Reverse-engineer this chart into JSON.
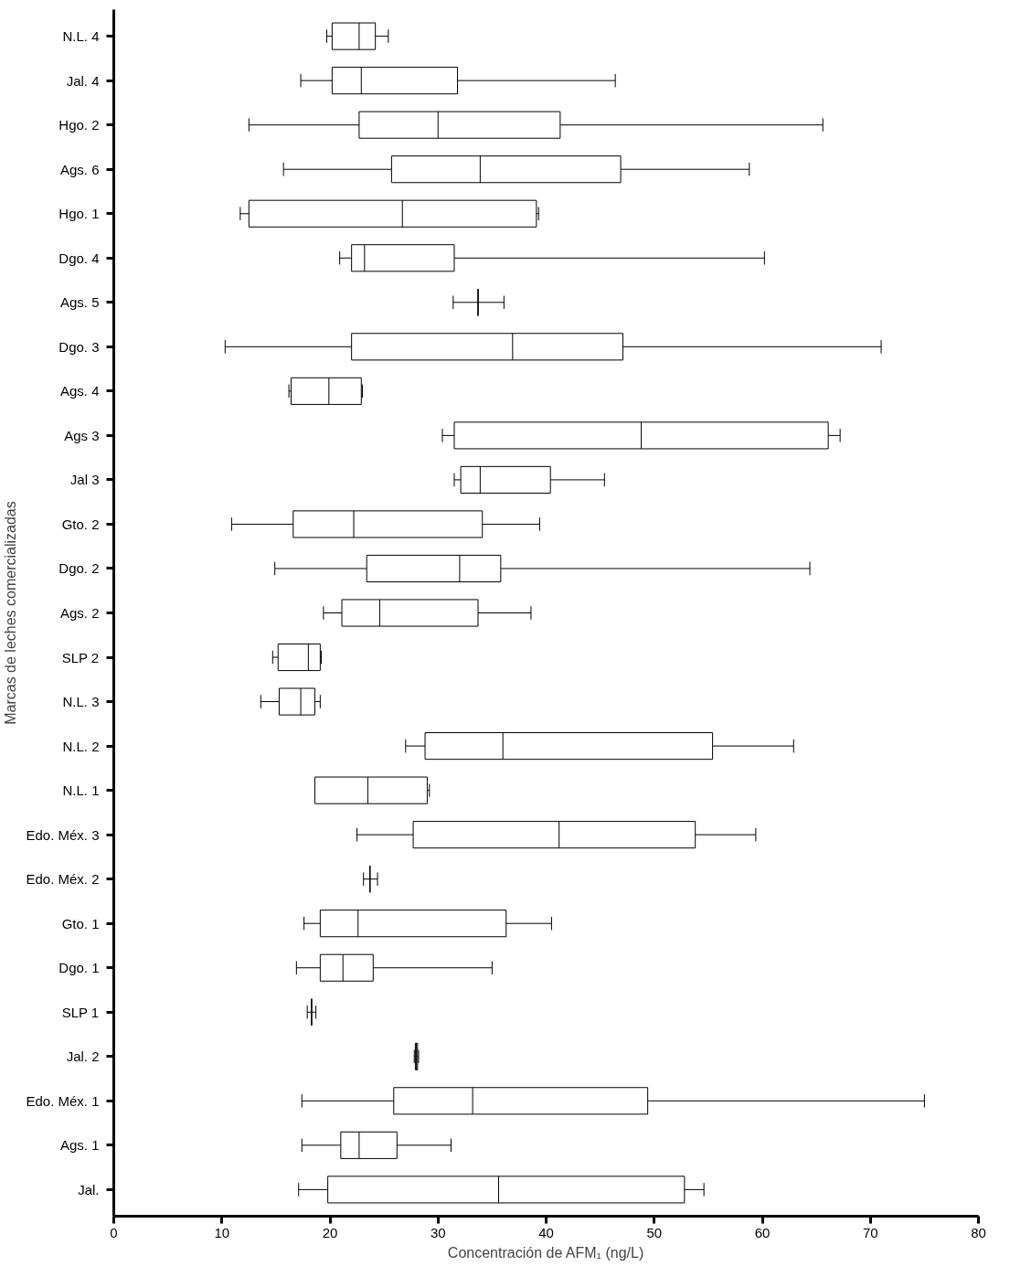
{
  "chart_data": {
    "type": "box",
    "orientation": "horizontal",
    "color": "#000000",
    "xlabel": "Concentración de AFM₁ (ng/L)",
    "ylabel": "Marcas de leches comercializadas",
    "categories": [
      "N.L. 4",
      "Jal. 4",
      "Hgo. 2",
      "Ags. 6",
      "Hgo. 1",
      "Dgo. 4",
      "Ags. 5",
      "Dgo. 3",
      "Ags. 4",
      "Ags 3",
      "Jal 3",
      "Gto. 2",
      "Dgo. 2",
      "Ags. 2",
      "SLP 2",
      "N.L. 3",
      "N.L. 2",
      "N.L. 1",
      "Edo. Méx. 3",
      "Edo. Méx. 2",
      "Gto. 1",
      "Dgo. 1",
      "SLP 1",
      "Jal. 2",
      "Edo. Méx. 1",
      "Ags. 1",
      "Jal."
    ],
    "boxes": [
      {
        "low": 19.7,
        "q1": 20.2,
        "median": 22.7,
        "q3": 24.2,
        "high": 25.4
      },
      {
        "low": 17.3,
        "q1": 20.2,
        "median": 22.9,
        "q3": 31.8,
        "high": 46.4
      },
      {
        "low": 12.5,
        "q1": 22.7,
        "median": 30.0,
        "q3": 41.3,
        "high": 65.6
      },
      {
        "low": 15.7,
        "q1": 25.7,
        "median": 33.9,
        "q3": 46.9,
        "high": 58.8
      },
      {
        "low": 11.7,
        "q1": 12.5,
        "median": 26.7,
        "q3": 39.1,
        "high": 39.3
      },
      {
        "low": 20.9,
        "q1": 22.0,
        "median": 23.2,
        "q3": 31.5,
        "high": 60.2
      },
      {
        "low": 31.4,
        "q1": 33.7,
        "median": 33.7,
        "q3": 33.7,
        "high": 36.1
      },
      {
        "low": 10.3,
        "q1": 22.0,
        "median": 36.9,
        "q3": 47.1,
        "high": 71.0
      },
      {
        "low": 16.2,
        "q1": 16.4,
        "median": 19.9,
        "q3": 22.9,
        "high": 23.0
      },
      {
        "low": 30.4,
        "q1": 31.5,
        "median": 48.8,
        "q3": 66.1,
        "high": 67.2
      },
      {
        "low": 31.5,
        "q1": 32.1,
        "median": 33.9,
        "q3": 40.4,
        "high": 45.4
      },
      {
        "low": 10.9,
        "q1": 16.6,
        "median": 22.2,
        "q3": 34.1,
        "high": 39.4
      },
      {
        "low": 14.9,
        "q1": 23.4,
        "median": 32.0,
        "q3": 35.8,
        "high": 64.4
      },
      {
        "low": 19.4,
        "q1": 21.1,
        "median": 24.6,
        "q3": 33.7,
        "high": 38.6
      },
      {
        "low": 14.7,
        "q1": 15.2,
        "median": 18.0,
        "q3": 19.1,
        "high": 19.2
      },
      {
        "low": 13.6,
        "q1": 15.3,
        "median": 17.3,
        "q3": 18.6,
        "high": 19.1
      },
      {
        "low": 27.0,
        "q1": 28.8,
        "median": 36.0,
        "q3": 55.4,
        "high": 62.9
      },
      {
        "low": 18.6,
        "q1": 18.6,
        "median": 23.5,
        "q3": 29.0,
        "high": 29.2
      },
      {
        "low": 22.5,
        "q1": 27.7,
        "median": 41.2,
        "q3": 53.8,
        "high": 59.4
      },
      {
        "low": 23.1,
        "q1": 23.7,
        "median": 23.7,
        "q3": 23.7,
        "high": 24.4
      },
      {
        "low": 17.6,
        "q1": 19.1,
        "median": 22.6,
        "q3": 36.3,
        "high": 40.5
      },
      {
        "low": 16.9,
        "q1": 19.1,
        "median": 21.2,
        "q3": 24.0,
        "high": 35.0
      },
      {
        "low": 17.9,
        "q1": 18.3,
        "median": 18.3,
        "q3": 18.3,
        "high": 18.7
      },
      {
        "low": 27.8,
        "q1": 27.9,
        "median": 28.0,
        "q3": 28.1,
        "high": 28.2
      },
      {
        "low": 17.4,
        "q1": 25.9,
        "median": 33.2,
        "q3": 49.4,
        "high": 75.0
      },
      {
        "low": 17.4,
        "q1": 21.0,
        "median": 22.7,
        "q3": 26.2,
        "high": 31.2
      },
      {
        "low": 17.1,
        "q1": 19.8,
        "median": 35.6,
        "q3": 52.8,
        "high": 54.6
      }
    ],
    "xlim": [
      0,
      80
    ],
    "xticks": [
      0,
      10,
      20,
      30,
      40,
      50,
      60,
      70,
      80
    ],
    "grid": false
  }
}
